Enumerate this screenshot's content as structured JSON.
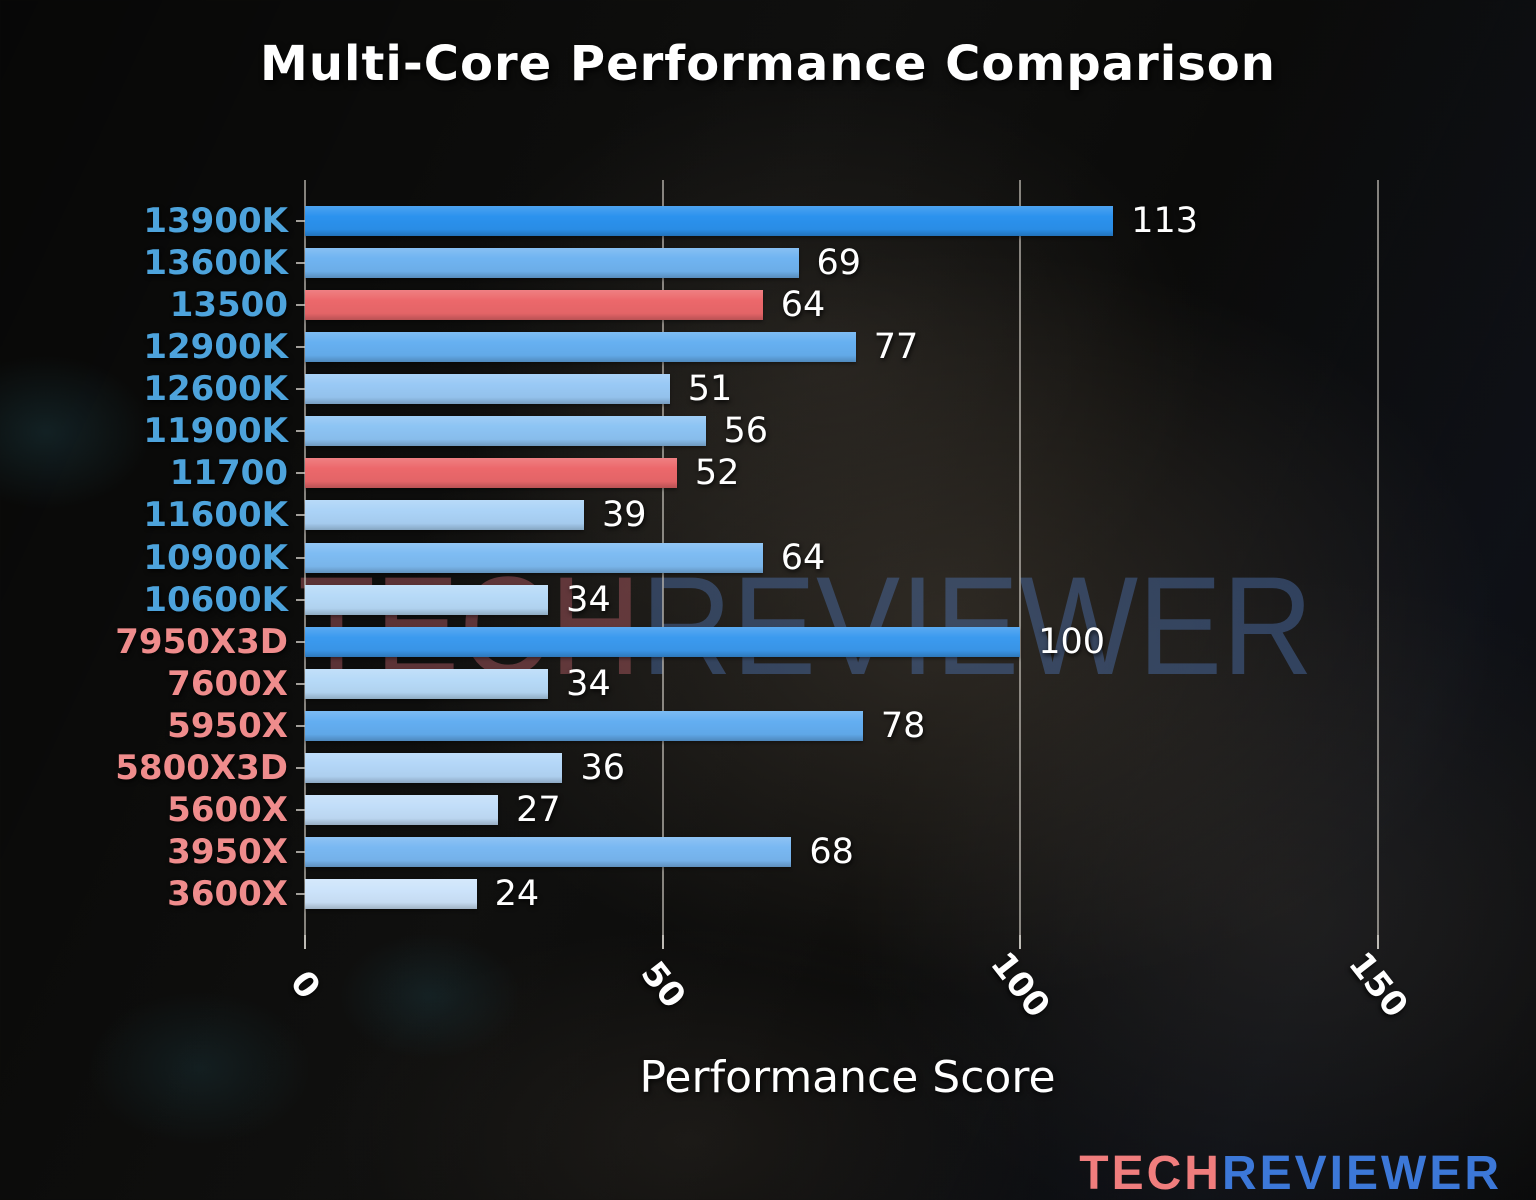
{
  "watermark": {
    "tech": "TECH",
    "reviewer": "REVIEWER"
  },
  "logo": {
    "tech": "TECH",
    "reviewer": "REVIEWER"
  },
  "colors": {
    "intel_label": "#4da3dc",
    "amd_label": "#ef8c8c",
    "highlight_bar": "#ec686b",
    "grid": "#b9b5ae",
    "text": "#ffffff",
    "logo_tech": "#f07d7d",
    "logo_reviewer": "#3c78d8",
    "watermark_tech": "#aa585f",
    "watermark_reviewer": "#527abc",
    "background": "#0b0b0a"
  },
  "chart_data": {
    "type": "bar",
    "orientation": "horizontal",
    "title": "Multi-Core Performance Comparison",
    "xlabel": "Performance Score",
    "ylabel": "",
    "xlim": [
      0,
      151.7
    ],
    "x_ticks": [
      0,
      50,
      100,
      150
    ],
    "grid": true,
    "legend": false,
    "bars": [
      {
        "label": "13900K",
        "value": 113,
        "brand": "intel",
        "bar_color": "#2b92ee",
        "label_color": "#4da3dc"
      },
      {
        "label": "13600K",
        "value": 69,
        "brand": "intel",
        "bar_color": "#70b4f1",
        "label_color": "#4da3dc"
      },
      {
        "label": "13500",
        "value": 64,
        "brand": "intel",
        "bar_color": "#ec686b",
        "label_color": "#4da3dc",
        "highlight": true
      },
      {
        "label": "12900K",
        "value": 77,
        "brand": "intel",
        "bar_color": "#66b0f1",
        "label_color": "#4da3dc"
      },
      {
        "label": "12600K",
        "value": 51,
        "brand": "intel",
        "bar_color": "#99c9f5",
        "label_color": "#4da3dc"
      },
      {
        "label": "11900K",
        "value": 56,
        "brand": "intel",
        "bar_color": "#8dc4f4",
        "label_color": "#4da3dc"
      },
      {
        "label": "11700",
        "value": 52,
        "brand": "intel",
        "bar_color": "#ec686b",
        "label_color": "#4da3dc",
        "highlight": true
      },
      {
        "label": "11600K",
        "value": 39,
        "brand": "intel",
        "bar_color": "#abd3f7",
        "label_color": "#4da3dc"
      },
      {
        "label": "10900K",
        "value": 64,
        "brand": "intel",
        "bar_color": "#7ebcf3",
        "label_color": "#4da3dc"
      },
      {
        "label": "10600K",
        "value": 34,
        "brand": "intel",
        "bar_color": "#b7daf8",
        "label_color": "#4da3dc"
      },
      {
        "label": "7950X3D",
        "value": 100,
        "brand": "amd",
        "bar_color": "#3b9aef",
        "label_color": "#ef8c8c"
      },
      {
        "label": "7600X",
        "value": 34,
        "brand": "amd",
        "bar_color": "#b7daf8",
        "label_color": "#ef8c8c"
      },
      {
        "label": "5950X",
        "value": 78,
        "brand": "amd",
        "bar_color": "#63aef1",
        "label_color": "#ef8c8c"
      },
      {
        "label": "5800X3D",
        "value": 36,
        "brand": "amd",
        "bar_color": "#b4d7f8",
        "label_color": "#ef8c8c"
      },
      {
        "label": "5600X",
        "value": 27,
        "brand": "amd",
        "bar_color": "#c2def9",
        "label_color": "#ef8c8c"
      },
      {
        "label": "3950X",
        "value": 68,
        "brand": "amd",
        "bar_color": "#79b8f2",
        "label_color": "#ef8c8c"
      },
      {
        "label": "3600X",
        "value": 24,
        "brand": "amd",
        "bar_color": "#cde4fb",
        "label_color": "#ef8c8c"
      }
    ]
  }
}
